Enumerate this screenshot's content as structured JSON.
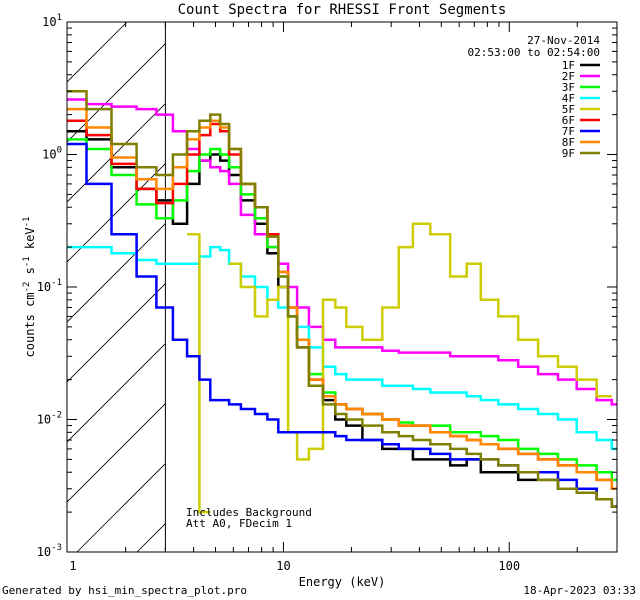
{
  "chart_data": {
    "type": "line",
    "title": "Count Spectra for RHESSI Front Segments",
    "xlabel": "Energy (keV)",
    "ylabel": "counts cm-2 s-1 keV-1",
    "xscale": "log",
    "yscale": "log",
    "xlim": [
      1.1,
      300
    ],
    "ylim": [
      0.001,
      10
    ],
    "x_ticks": [
      {
        "value": 1,
        "label": "1"
      },
      {
        "value": 10,
        "label": "10"
      },
      {
        "value": 100,
        "label": "100"
      }
    ],
    "y_ticks": [
      {
        "value": 0.001,
        "label": "10",
        "exp": "-3"
      },
      {
        "value": 0.01,
        "label": "10",
        "exp": "-2"
      },
      {
        "value": 0.1,
        "label": "10",
        "exp": "-1"
      },
      {
        "value": 1,
        "label": "10",
        "exp": "0"
      },
      {
        "value": 10,
        "label": "10",
        "exp": "1"
      }
    ],
    "date": "27-Nov-2014",
    "time_range": "02:53:00 to 02:54:00",
    "shaded_region_max_keV": 3,
    "annotations": [
      "Includes Background",
      "Att A0, FDecim 1"
    ],
    "legend_position": "top-right",
    "x": [
      1.2,
      1.5,
      2.0,
      2.5,
      3.0,
      3.5,
      4.0,
      4.5,
      5.0,
      5.5,
      6.0,
      7.0,
      8.0,
      9.0,
      10,
      11,
      12,
      14,
      16,
      18,
      20,
      25,
      30,
      35,
      40,
      50,
      60,
      70,
      80,
      100,
      120,
      150,
      180,
      220,
      270,
      300
    ],
    "series": [
      {
        "name": "1F",
        "color": "#000000",
        "values": [
          1.5,
          1.3,
          0.8,
          0.55,
          0.45,
          0.3,
          0.6,
          0.9,
          1.0,
          0.9,
          0.7,
          0.45,
          0.3,
          0.18,
          0.1,
          0.06,
          0.035,
          0.02,
          0.014,
          0.01,
          0.009,
          0.007,
          0.006,
          0.006,
          0.005,
          0.005,
          0.0045,
          0.005,
          0.004,
          0.004,
          0.0035,
          0.0035,
          0.003,
          0.003,
          0.0025,
          0.0022
        ]
      },
      {
        "name": "2F",
        "color": "#ff00ff",
        "values": [
          2.6,
          2.4,
          2.3,
          2.2,
          2.0,
          1.5,
          1.1,
          0.9,
          0.8,
          0.75,
          0.6,
          0.35,
          0.25,
          0.2,
          0.15,
          0.1,
          0.07,
          0.05,
          0.04,
          0.035,
          0.035,
          0.035,
          0.033,
          0.032,
          0.032,
          0.032,
          0.03,
          0.03,
          0.03,
          0.028,
          0.025,
          0.022,
          0.02,
          0.017,
          0.014,
          0.013
        ]
      },
      {
        "name": "3F",
        "color": "#00ff00",
        "values": [
          1.3,
          1.1,
          0.7,
          0.42,
          0.33,
          0.45,
          0.75,
          1.0,
          1.1,
          1.0,
          0.8,
          0.5,
          0.33,
          0.2,
          0.12,
          0.07,
          0.04,
          0.022,
          0.016,
          0.013,
          0.012,
          0.011,
          0.01,
          0.0095,
          0.009,
          0.009,
          0.008,
          0.008,
          0.0075,
          0.007,
          0.006,
          0.0055,
          0.005,
          0.0045,
          0.004,
          0.0035
        ]
      },
      {
        "name": "4F",
        "color": "#00ffff",
        "values": [
          0.2,
          0.2,
          0.18,
          0.16,
          0.15,
          0.15,
          0.15,
          0.17,
          0.2,
          0.19,
          0.15,
          0.12,
          0.1,
          0.08,
          0.07,
          0.06,
          0.05,
          0.035,
          0.025,
          0.022,
          0.02,
          0.02,
          0.018,
          0.018,
          0.017,
          0.016,
          0.016,
          0.015,
          0.014,
          0.013,
          0.012,
          0.011,
          0.01,
          0.008,
          0.007,
          0.006
        ]
      },
      {
        "name": "5F",
        "color": "#cccc00",
        "values": [
          null,
          null,
          null,
          null,
          null,
          null,
          0.25,
          0.002,
          null,
          null,
          0.15,
          0.1,
          0.06,
          0.08,
          0.1,
          0.008,
          0.005,
          0.006,
          0.08,
          0.07,
          0.05,
          0.04,
          0.07,
          0.2,
          0.3,
          0.25,
          0.12,
          0.15,
          0.08,
          0.06,
          0.04,
          0.03,
          0.025,
          0.02,
          0.015,
          null
        ]
      },
      {
        "name": "6F",
        "color": "#ff0000",
        "values": [
          1.8,
          1.4,
          0.85,
          0.55,
          0.43,
          0.6,
          1.0,
          1.4,
          1.7,
          1.5,
          1.0,
          0.6,
          0.4,
          0.25,
          0.13,
          0.07,
          0.04,
          0.02,
          0.015,
          0.013,
          0.012,
          0.011,
          0.01,
          0.009,
          0.009,
          0.008,
          0.0075,
          0.007,
          0.0065,
          0.006,
          0.0055,
          0.005,
          0.0045,
          0.004,
          0.0035,
          0.003
        ]
      },
      {
        "name": "7F",
        "color": "#0000ff",
        "values": [
          1.2,
          0.6,
          0.25,
          0.12,
          0.07,
          0.04,
          0.03,
          0.02,
          0.014,
          0.014,
          0.013,
          0.012,
          0.011,
          0.01,
          0.008,
          0.008,
          0.008,
          0.008,
          0.008,
          0.0075,
          0.007,
          0.007,
          0.0065,
          0.006,
          0.006,
          0.0055,
          0.005,
          0.005,
          0.005,
          0.0045,
          0.004,
          0.004,
          0.0035,
          0.003,
          0.0025,
          0.0022
        ]
      },
      {
        "name": "8F",
        "color": "#ff8800",
        "values": [
          2.2,
          1.6,
          0.95,
          0.65,
          0.55,
          0.8,
          1.3,
          1.6,
          1.8,
          1.6,
          1.1,
          0.6,
          0.4,
          0.24,
          0.13,
          0.07,
          0.04,
          0.02,
          0.015,
          0.013,
          0.012,
          0.011,
          0.01,
          0.009,
          0.009,
          0.008,
          0.0075,
          0.007,
          0.0065,
          0.006,
          0.0055,
          0.005,
          0.0045,
          0.004,
          0.0035,
          0.003
        ]
      },
      {
        "name": "9F",
        "color": "#808000",
        "values": [
          3.0,
          2.2,
          1.2,
          0.8,
          0.7,
          1.0,
          1.5,
          1.8,
          2.0,
          1.7,
          1.1,
          0.6,
          0.4,
          0.24,
          0.12,
          0.06,
          0.035,
          0.018,
          0.013,
          0.011,
          0.01,
          0.009,
          0.008,
          0.0075,
          0.007,
          0.0065,
          0.006,
          0.0055,
          0.005,
          0.0045,
          0.004,
          0.0035,
          0.003,
          0.0028,
          0.0025,
          0.0022
        ]
      }
    ]
  },
  "footer": {
    "generated_by": "Generated by hsi_min_spectra_plot.pro",
    "timestamp": "18-Apr-2023 03:33"
  }
}
